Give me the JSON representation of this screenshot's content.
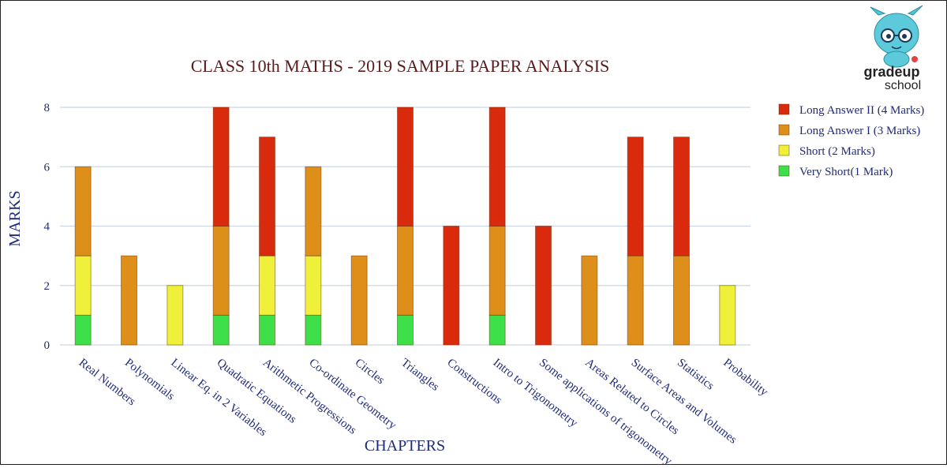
{
  "chart_data": {
    "type": "bar",
    "stacked": true,
    "title": "CLASS 10th MATHS - 2019 SAMPLE PAPER ANALYSIS",
    "xlabel": "CHAPTERS",
    "ylabel": "MARKS",
    "ylim": [
      0,
      8
    ],
    "yticks": [
      0,
      2,
      4,
      6,
      8
    ],
    "grid": true,
    "legend_position": "right",
    "categories": [
      "Real Numbers",
      "Polynomials",
      "Linear Eq. in 2 Variables",
      "Quadratic Equations",
      "Arithmetic Progressions",
      "Co-ordinate Geometry",
      "Circles",
      "Triangles",
      "Constructions",
      "Intro to Trigonometry",
      "Some applications of trigonometry",
      "Areas Related to Circles",
      "Surface Areas and Volumes",
      "Statistics",
      "Probability"
    ],
    "series": [
      {
        "name": "Very Short(1 Mark)",
        "color": "#3ee04a",
        "values": [
          1,
          0,
          0,
          1,
          1,
          1,
          0,
          1,
          0,
          1,
          0,
          0,
          0,
          0,
          0
        ]
      },
      {
        "name": "Short (2 Marks)",
        "color": "#eef03a",
        "values": [
          2,
          0,
          2,
          0,
          2,
          2,
          0,
          0,
          0,
          0,
          0,
          0,
          0,
          0,
          2
        ]
      },
      {
        "name": "Long Answer I (3 Marks)",
        "color": "#dd8f1a",
        "values": [
          3,
          3,
          0,
          3,
          0,
          3,
          3,
          3,
          0,
          3,
          0,
          3,
          3,
          3,
          0
        ]
      },
      {
        "name": "Long Answer II (4 Marks)",
        "color": "#d92a0e",
        "values": [
          0,
          0,
          0,
          4,
          4,
          0,
          0,
          4,
          4,
          4,
          4,
          0,
          4,
          4,
          0
        ]
      }
    ],
    "legend_order": [
      "Long Answer II (4 Marks)",
      "Long Answer I (3 Marks)",
      "Short (2 Marks)",
      "Very Short(1 Mark)"
    ]
  },
  "logo": {
    "text_main": "gradeup",
    "text_sub": "school"
  }
}
